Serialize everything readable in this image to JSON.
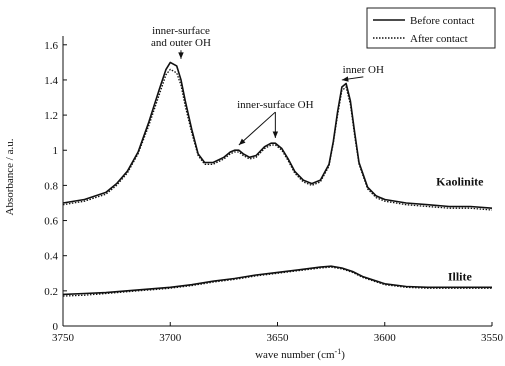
{
  "chart_data": {
    "type": "line",
    "title": "",
    "xlabel": "wave number (cm",
    "xlabel_sup": "-1",
    "xlabel_close": ")",
    "ylabel": "Absorbance / a.u.",
    "xlim": [
      3750,
      3550
    ],
    "ylim": [
      0,
      1.65
    ],
    "x_ticks": [
      3750,
      3700,
      3650,
      3600,
      3550
    ],
    "y_ticks": [
      0,
      0.2,
      0.4,
      0.6,
      0.8,
      1,
      1.2,
      1.4,
      1.6
    ],
    "y_tick_labels": [
      "0",
      "0.2",
      "0.4",
      "0.6",
      "0.8",
      "1",
      "1.2",
      "1.4",
      "1.6"
    ],
    "grid": false,
    "legend": {
      "position": "top-right",
      "entries": [
        {
          "label": "Before contact",
          "style": "solid"
        },
        {
          "label": "After contact",
          "style": "dotted"
        }
      ]
    },
    "sample_labels": [
      {
        "text": "Kaolinite",
        "x": 3565,
        "y": 0.8
      },
      {
        "text": "Illite",
        "x": 3565,
        "y": 0.26
      }
    ],
    "annotations": [
      {
        "lines": [
          "inner-surface",
          "and outer OH"
        ],
        "x": 3695,
        "y": 1.66,
        "arrows": [
          {
            "x": 3695,
            "y": 1.52
          }
        ]
      },
      {
        "lines": [
          "inner-surface OH"
        ],
        "x": 3651,
        "y": 1.24,
        "arrows": [
          {
            "x": 3668,
            "y": 1.03
          },
          {
            "x": 3651,
            "y": 1.07
          }
        ]
      },
      {
        "lines": [
          "inner OH"
        ],
        "x": 3610,
        "y": 1.44,
        "arrows": [
          {
            "x": 3620,
            "y": 1.4
          }
        ]
      }
    ],
    "series": [
      {
        "name": "Kaolinite — Before contact",
        "style": "solid",
        "x": [
          3750,
          3740,
          3730,
          3725,
          3720,
          3715,
          3710,
          3705,
          3702,
          3700,
          3697,
          3695,
          3693,
          3690,
          3687,
          3684,
          3680,
          3675,
          3672,
          3670,
          3668,
          3666,
          3663,
          3660,
          3656,
          3653,
          3651,
          3648,
          3645,
          3642,
          3638,
          3634,
          3630,
          3626,
          3624,
          3622,
          3620,
          3618,
          3616,
          3614,
          3612,
          3608,
          3604,
          3600,
          3590,
          3580,
          3570,
          3560,
          3550
        ],
        "y": [
          0.7,
          0.72,
          0.76,
          0.81,
          0.88,
          0.99,
          1.16,
          1.35,
          1.46,
          1.5,
          1.48,
          1.4,
          1.28,
          1.12,
          0.98,
          0.93,
          0.93,
          0.96,
          0.99,
          1.0,
          1.0,
          0.98,
          0.96,
          0.97,
          1.02,
          1.04,
          1.04,
          1.01,
          0.95,
          0.88,
          0.83,
          0.81,
          0.83,
          0.92,
          1.05,
          1.22,
          1.36,
          1.38,
          1.28,
          1.1,
          0.93,
          0.79,
          0.74,
          0.72,
          0.7,
          0.69,
          0.68,
          0.68,
          0.67
        ]
      },
      {
        "name": "Kaolinite — After contact",
        "style": "dotted",
        "x": [
          3750,
          3740,
          3730,
          3725,
          3720,
          3715,
          3710,
          3705,
          3702,
          3700,
          3697,
          3695,
          3693,
          3690,
          3687,
          3684,
          3680,
          3675,
          3672,
          3670,
          3668,
          3666,
          3663,
          3660,
          3656,
          3653,
          3651,
          3648,
          3645,
          3642,
          3638,
          3634,
          3630,
          3626,
          3624,
          3622,
          3620,
          3618,
          3616,
          3614,
          3612,
          3608,
          3604,
          3600,
          3590,
          3580,
          3570,
          3560,
          3550
        ],
        "y": [
          0.69,
          0.71,
          0.75,
          0.8,
          0.87,
          0.98,
          1.14,
          1.32,
          1.43,
          1.46,
          1.44,
          1.37,
          1.25,
          1.1,
          0.97,
          0.92,
          0.92,
          0.95,
          0.98,
          0.99,
          0.99,
          0.97,
          0.95,
          0.96,
          1.01,
          1.03,
          1.03,
          1.0,
          0.94,
          0.87,
          0.82,
          0.8,
          0.82,
          0.91,
          1.04,
          1.2,
          1.34,
          1.36,
          1.26,
          1.08,
          0.92,
          0.78,
          0.73,
          0.71,
          0.69,
          0.68,
          0.67,
          0.67,
          0.66
        ]
      },
      {
        "name": "Illite — Before contact",
        "style": "solid",
        "x": [
          3750,
          3740,
          3730,
          3720,
          3710,
          3700,
          3690,
          3680,
          3670,
          3660,
          3650,
          3640,
          3630,
          3625,
          3620,
          3615,
          3610,
          3600,
          3590,
          3580,
          3570,
          3560,
          3550
        ],
        "y": [
          0.18,
          0.185,
          0.19,
          0.2,
          0.21,
          0.22,
          0.235,
          0.255,
          0.27,
          0.29,
          0.305,
          0.32,
          0.335,
          0.34,
          0.33,
          0.31,
          0.28,
          0.24,
          0.225,
          0.22,
          0.22,
          0.22,
          0.22
        ]
      },
      {
        "name": "Illite — After contact",
        "style": "dotted",
        "x": [
          3750,
          3740,
          3730,
          3720,
          3710,
          3700,
          3690,
          3680,
          3670,
          3660,
          3650,
          3640,
          3630,
          3625,
          3620,
          3615,
          3610,
          3600,
          3590,
          3580,
          3570,
          3560,
          3550
        ],
        "y": [
          0.17,
          0.175,
          0.185,
          0.195,
          0.205,
          0.215,
          0.23,
          0.25,
          0.265,
          0.285,
          0.3,
          0.315,
          0.33,
          0.335,
          0.325,
          0.305,
          0.275,
          0.235,
          0.22,
          0.215,
          0.215,
          0.215,
          0.215
        ]
      }
    ]
  }
}
